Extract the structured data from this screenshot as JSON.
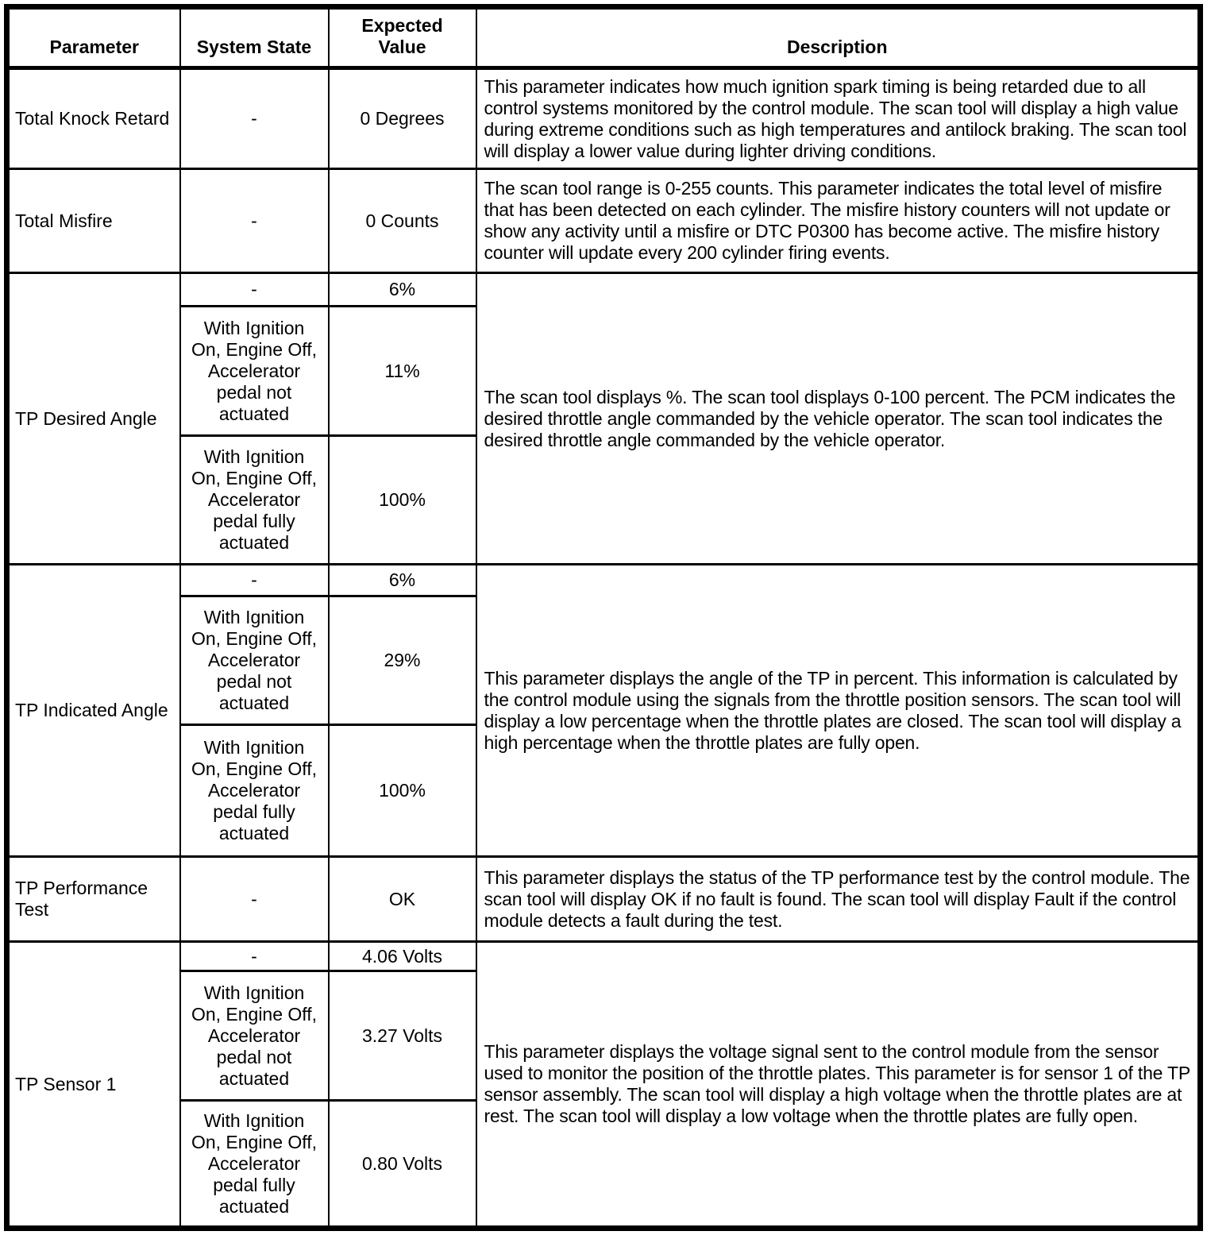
{
  "table": {
    "headers": {
      "parameter": "Parameter",
      "system_state": "System State",
      "expected_value": "Expected Value",
      "description": "Description"
    },
    "rows": [
      {
        "parameter": "Total Knock Retard",
        "states": [
          {
            "state": "-",
            "value": "0 Degrees"
          }
        ],
        "description": "This parameter indicates how much ignition spark timing is being retarded due to all control systems monitored by the control module. The scan tool will display a high value during extreme conditions such as high temperatures and antilock braking. The scan tool will display a lower value during lighter driving conditions."
      },
      {
        "parameter": "Total Misfire",
        "states": [
          {
            "state": "-",
            "value": "0 Counts"
          }
        ],
        "description": "The scan tool range is 0-255 counts. This parameter indicates the total level of misfire that has been detected on each cylinder. The misfire history counters will not update or show any activity until a misfire or DTC P0300 has become active. The misfire history counter will update every 200 cylinder firing events."
      },
      {
        "parameter": "TP Desired Angle",
        "states": [
          {
            "state": "-",
            "value": "6%"
          },
          {
            "state": "With Ignition On, Engine Off, Accelerator pedal not actuated",
            "value": "11%"
          },
          {
            "state": "With Ignition On, Engine Off, Accelerator pedal fully actuated",
            "value": "100%"
          }
        ],
        "description": "The scan tool displays %. The scan tool displays 0-100 percent. The PCM indicates the desired throttle angle commanded by the vehicle operator. The scan tool indicates the desired throttle angle commanded by the vehicle operator."
      },
      {
        "parameter": "TP Indicated Angle",
        "states": [
          {
            "state": "-",
            "value": "6%"
          },
          {
            "state": "With Ignition On, Engine Off, Accelerator pedal not actuated",
            "value": "29%"
          },
          {
            "state": "With Ignition On, Engine Off, Accelerator pedal fully actuated",
            "value": "100%"
          }
        ],
        "description": "This parameter displays the angle of the TP in percent. This information is calculated by the control module using the signals from the throttle position sensors. The scan tool will display a low percentage when the throttle plates are closed. The scan tool will display a high percentage when the throttle plates are fully open."
      },
      {
        "parameter": "TP Performance Test",
        "states": [
          {
            "state": "-",
            "value": "OK"
          }
        ],
        "description": "This parameter displays the status of the TP performance test by the control module. The scan tool will display OK if no fault is found. The scan tool will display Fault if the control module detects a fault during the test."
      },
      {
        "parameter": "TP Sensor 1",
        "states": [
          {
            "state": "-",
            "value": "4.06 Volts"
          },
          {
            "state": "With Ignition On, Engine Off, Accelerator pedal not actuated",
            "value": "3.27 Volts"
          },
          {
            "state": "With Ignition On, Engine Off, Accelerator pedal fully actuated",
            "value": "0.80 Volts"
          }
        ],
        "description": "This parameter displays the voltage signal sent to the control module from the sensor used to monitor the position of the throttle plates. This parameter is for sensor 1 of the TP sensor assembly. The scan tool will display a high voltage when the throttle plates are at rest. The scan tool will display a low voltage when the throttle plates are fully open."
      }
    ]
  }
}
